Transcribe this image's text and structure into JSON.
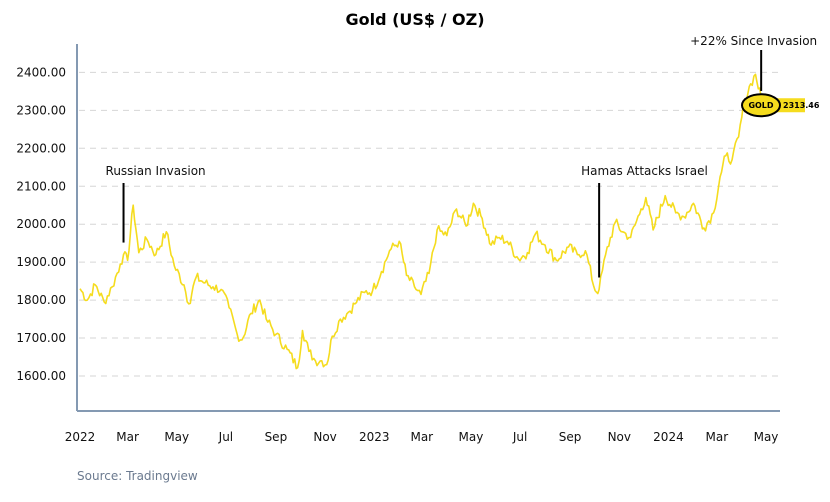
{
  "chart_data": {
    "type": "line",
    "title": "Gold (US$ / OZ)",
    "source": "Source: Tradingview",
    "ylim": [
      1500,
      2440
    ],
    "yticks": [
      "1600.00",
      "1700.00",
      "1800.00",
      "1900.00",
      "2000.00",
      "2100.00",
      "2200.00",
      "2300.00",
      "2400.00"
    ],
    "x_tick_labels": [
      "2022",
      "Mar",
      "May",
      "Jul",
      "Sep",
      "Nov",
      "2023",
      "Mar",
      "May",
      "Jul",
      "Sep",
      "Nov",
      "2024",
      "Mar",
      "May"
    ],
    "grid": true,
    "line_color": "#f5dc1e",
    "series": [
      {
        "name": "GOLD",
        "points": [
          [
            "2022-01-01",
            1830
          ],
          [
            "2022-01-10",
            1800
          ],
          [
            "2022-01-20",
            1840
          ],
          [
            "2022-01-31",
            1795
          ],
          [
            "2022-02-10",
            1835
          ],
          [
            "2022-02-20",
            1895
          ],
          [
            "2022-02-24",
            1920
          ],
          [
            "2022-03-01",
            1905
          ],
          [
            "2022-03-08",
            2050
          ],
          [
            "2022-03-15",
            1925
          ],
          [
            "2022-03-25",
            1960
          ],
          [
            "2022-04-05",
            1920
          ],
          [
            "2022-04-18",
            1980
          ],
          [
            "2022-04-28",
            1890
          ],
          [
            "2022-05-10",
            1840
          ],
          [
            "2022-05-16",
            1790
          ],
          [
            "2022-05-25",
            1860
          ],
          [
            "2022-06-05",
            1845
          ],
          [
            "2022-06-15",
            1835
          ],
          [
            "2022-06-25",
            1828
          ],
          [
            "2022-07-05",
            1780
          ],
          [
            "2022-07-15",
            1710
          ],
          [
            "2022-07-21",
            1695
          ],
          [
            "2022-08-01",
            1765
          ],
          [
            "2022-08-12",
            1800
          ],
          [
            "2022-08-20",
            1750
          ],
          [
            "2022-09-01",
            1710
          ],
          [
            "2022-09-15",
            1670
          ],
          [
            "2022-09-28",
            1622
          ],
          [
            "2022-10-04",
            1720
          ],
          [
            "2022-10-12",
            1665
          ],
          [
            "2022-10-20",
            1640
          ],
          [
            "2022-10-28",
            1640
          ],
          [
            "2022-11-03",
            1630
          ],
          [
            "2022-11-10",
            1705
          ],
          [
            "2022-11-20",
            1750
          ],
          [
            "2022-11-30",
            1768
          ],
          [
            "2022-12-08",
            1790
          ],
          [
            "2022-12-20",
            1820
          ],
          [
            "2022-12-30",
            1825
          ],
          [
            "2023-01-10",
            1875
          ],
          [
            "2023-01-20",
            1930
          ],
          [
            "2023-02-01",
            1955
          ],
          [
            "2023-02-10",
            1865
          ],
          [
            "2023-02-20",
            1835
          ],
          [
            "2023-02-28",
            1815
          ],
          [
            "2023-03-10",
            1870
          ],
          [
            "2023-03-20",
            1985
          ],
          [
            "2023-04-01",
            1970
          ],
          [
            "2023-04-13",
            2040
          ],
          [
            "2023-04-25",
            1995
          ],
          [
            "2023-05-04",
            2055
          ],
          [
            "2023-05-15",
            2015
          ],
          [
            "2023-05-26",
            1945
          ],
          [
            "2023-06-05",
            1965
          ],
          [
            "2023-06-15",
            1955
          ],
          [
            "2023-06-29",
            1908
          ],
          [
            "2023-07-10",
            1925
          ],
          [
            "2023-07-20",
            1975
          ],
          [
            "2023-08-01",
            1945
          ],
          [
            "2023-08-15",
            1905
          ],
          [
            "2023-08-30",
            1940
          ],
          [
            "2023-09-10",
            1920
          ],
          [
            "2023-09-20",
            1930
          ],
          [
            "2023-10-02",
            1825
          ],
          [
            "2023-10-07",
            1828
          ],
          [
            "2023-10-15",
            1920
          ],
          [
            "2023-10-27",
            2005
          ],
          [
            "2023-11-05",
            1980
          ],
          [
            "2023-11-15",
            1965
          ],
          [
            "2023-11-28",
            2040
          ],
          [
            "2023-12-04",
            2070
          ],
          [
            "2023-12-13",
            1985
          ],
          [
            "2023-12-28",
            2075
          ],
          [
            "2024-01-10",
            2030
          ],
          [
            "2024-01-20",
            2020
          ],
          [
            "2024-02-01",
            2055
          ],
          [
            "2024-02-14",
            1990
          ],
          [
            "2024-02-26",
            2030
          ],
          [
            "2024-03-05",
            2125
          ],
          [
            "2024-03-12",
            2180
          ],
          [
            "2024-03-20",
            2170
          ],
          [
            "2024-03-28",
            2230
          ],
          [
            "2024-04-05",
            2330
          ],
          [
            "2024-04-12",
            2370
          ],
          [
            "2024-04-18",
            2395
          ],
          [
            "2024-04-25",
            2330
          ]
        ]
      }
    ],
    "badge": {
      "label": "GOLD",
      "value": "2313.46"
    },
    "annotations": [
      {
        "text": "Russian Invasion",
        "date": "2022-02-24"
      },
      {
        "text": "Hamas Attacks Israel",
        "date": "2023-10-07"
      },
      {
        "text": "+22% Since Invasion",
        "date": "2024-04-25"
      }
    ]
  }
}
